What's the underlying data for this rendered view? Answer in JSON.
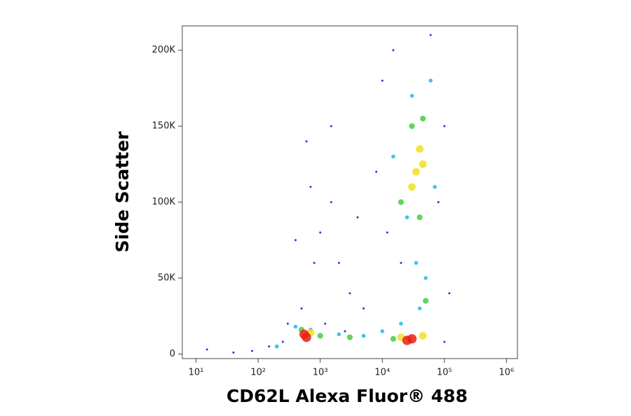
{
  "chart_data": {
    "type": "scatter",
    "x_label": "CD62L Alexa Fluor® 488",
    "y_label": "Side Scatter",
    "xscale": "log",
    "xlim": [
      6,
      1500000
    ],
    "xticks": [
      {
        "value": 10,
        "label": "10¹"
      },
      {
        "value": 100,
        "label": "10²"
      },
      {
        "value": 1000,
        "label": "10³"
      },
      {
        "value": 10000,
        "label": "10⁴"
      },
      {
        "value": 100000,
        "label": "10⁵"
      },
      {
        "value": 1000000,
        "label": "10⁶"
      }
    ],
    "ylim": [
      -3000,
      216000
    ],
    "yticks": [
      0,
      {
        "value": 50000,
        "label": "50K"
      },
      {
        "value": 100000,
        "label": "100K"
      },
      {
        "value": 150000,
        "label": "150K"
      },
      {
        "value": 200000,
        "label": "200K"
      }
    ],
    "series": [
      {
        "color": "#1010c8",
        "x": [
          15,
          40,
          80,
          150,
          300,
          500,
          800,
          1000,
          1500,
          600,
          2000,
          3000,
          5000,
          8000,
          10000,
          15000,
          60000,
          100000,
          120000,
          20000,
          700,
          400,
          250,
          1200,
          2500,
          100000,
          80000,
          12000,
          1500,
          4000
        ],
        "y": [
          3000,
          1000,
          2000,
          5000,
          20000,
          30000,
          60000,
          80000,
          100000,
          140000,
          60000,
          40000,
          30000,
          120000,
          180000,
          200000,
          210000,
          150000,
          40000,
          60000,
          110000,
          75000,
          8000,
          20000,
          15000,
          8000,
          100000,
          80000,
          150000,
          90000
        ]
      },
      {
        "color": "#20b8e8",
        "x": [
          400,
          700,
          2000,
          5000,
          10000,
          20000,
          40000,
          50000,
          15000,
          30000,
          60000,
          25000,
          70000,
          35000,
          200
        ],
        "y": [
          18000,
          16000,
          13000,
          12000,
          15000,
          20000,
          30000,
          50000,
          130000,
          170000,
          180000,
          90000,
          110000,
          60000,
          5000
        ]
      },
      {
        "color": "#40d040",
        "x": [
          500,
          1000,
          20000,
          30000,
          45000,
          40000,
          50000,
          3000,
          15000
        ],
        "y": [
          16000,
          12000,
          100000,
          150000,
          155000,
          90000,
          35000,
          11000,
          10000
        ]
      },
      {
        "color": "#f0e020",
        "x": [
          35000,
          40000,
          30000,
          45000,
          700,
          20000,
          45000
        ],
        "y": [
          120000,
          135000,
          110000,
          125000,
          14000,
          11000,
          12000
        ]
      },
      {
        "color": "#e82010",
        "x": [
          550,
          30000,
          25000,
          600
        ],
        "y": [
          13000,
          10000,
          9000,
          11000
        ]
      }
    ]
  }
}
